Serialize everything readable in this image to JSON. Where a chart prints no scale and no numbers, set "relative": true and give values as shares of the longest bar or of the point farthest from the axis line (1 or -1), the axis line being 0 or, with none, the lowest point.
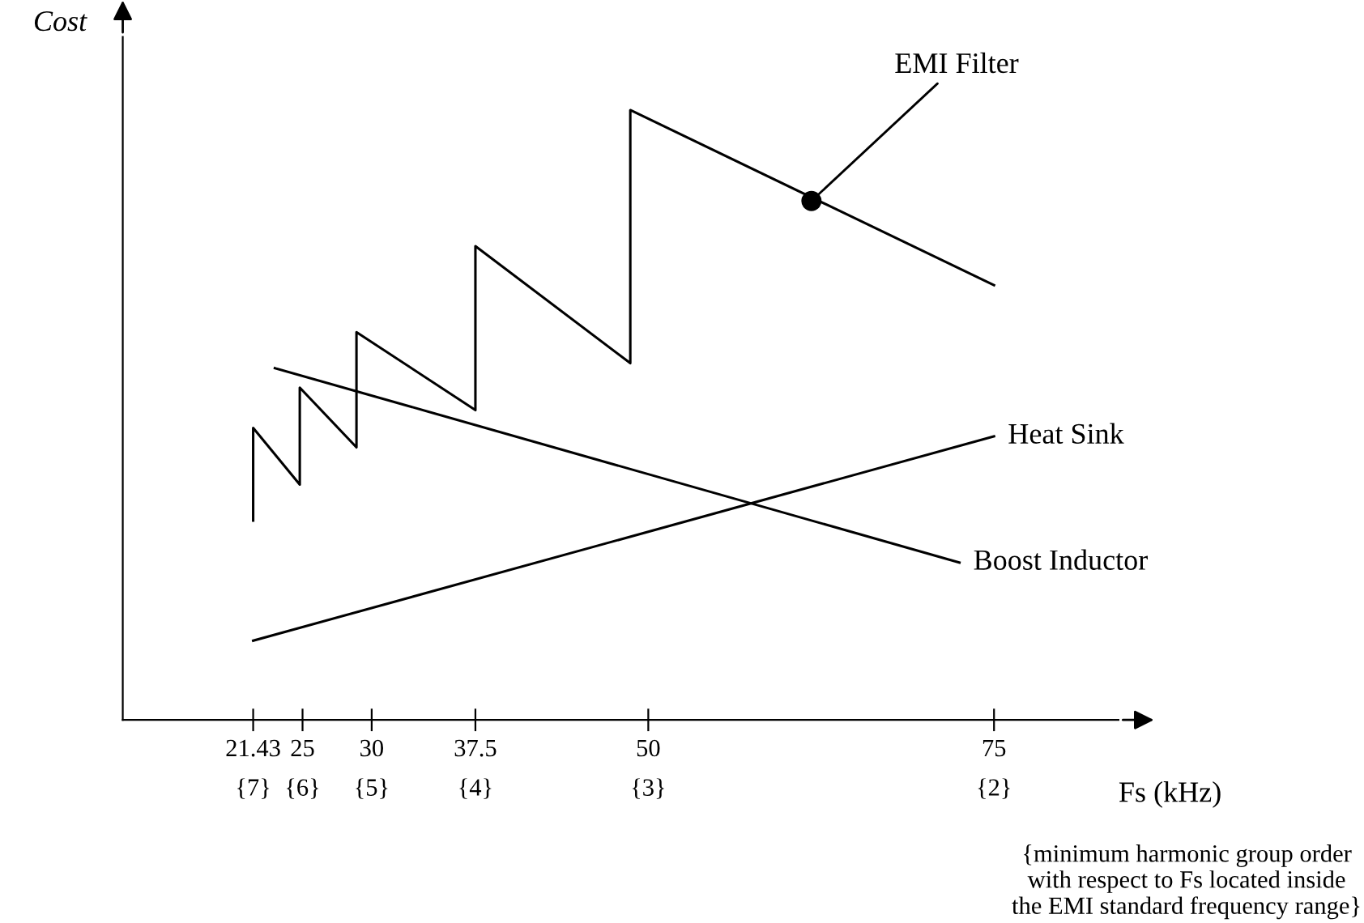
{
  "chart_data": {
    "type": "line",
    "relative": true,
    "ylabel": "Cost",
    "xlabel": "Fs (kHz)",
    "xlim": [
      12,
      84
    ],
    "xticks": [
      21.43,
      25,
      30,
      37.5,
      50,
      75
    ],
    "series": [
      {
        "color": "#000000",
        "x": [
          21.43,
          21.43,
          24.8,
          24.8,
          28.9,
          28.9,
          37.5,
          37.5,
          48.7,
          48.7,
          75
        ],
        "values": [
          0.327,
          0.479,
          0.386,
          0.545,
          0.447,
          0.636,
          0.508,
          0.777,
          0.585,
          1.0,
          0.713
        ]
      },
      {
        "name": "Heat Sink",
        "color": "#000000",
        "x": [
          21.43,
          75
        ],
        "values": [
          0.13,
          0.465
        ]
      },
      {
        "name": "Boost Inductor",
        "color": "#000000",
        "x": [
          23.0,
          72.5
        ],
        "values": [
          0.577,
          0.258
        ]
      }
    ],
    "annotations": [
      {
        "text": "EMI Filter",
        "x": 61.8,
        "y": 0.851
      },
      "{7}",
      "{6}",
      "{5}",
      "{4}",
      "{3}",
      "{2}",
      "{minimum harmonic group order with respect to Fs located inside the EMI standard frequency range}"
    ],
    "grid": false,
    "legend": false
  }
}
